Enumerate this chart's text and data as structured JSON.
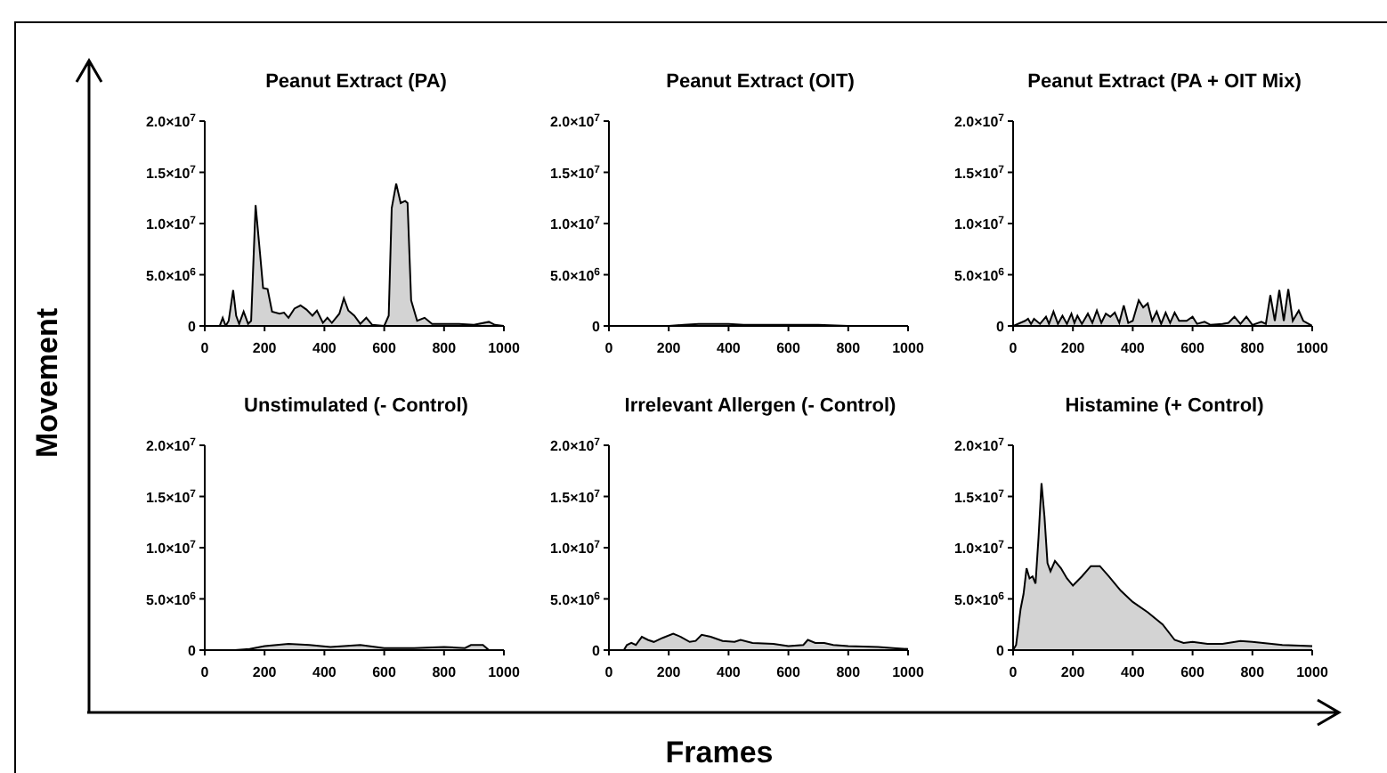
{
  "chart_data": [
    {
      "type": "area",
      "title": "Peanut Extract (PA)",
      "ylabel": "Movement",
      "color": "#d3d3d3",
      "xlim": [
        0,
        1000
      ],
      "xticks": [
        0,
        200,
        400,
        600,
        800,
        1000
      ],
      "ylim": [
        0,
        20000000
      ],
      "yticks": [
        {
          "value": 0,
          "label": "0"
        },
        {
          "value": 5000000,
          "label": "5.0×10$^{6}$"
        },
        {
          "value": 10000000,
          "label": "1.0×10$^{7}$"
        },
        {
          "value": 15000000,
          "label": "1.5×10$^{7}$"
        },
        {
          "value": 20000000,
          "label": "2.0×10$^{7}$"
        }
      ],
      "x": [
        0,
        50,
        60,
        70,
        80,
        95,
        105,
        115,
        130,
        145,
        155,
        170,
        185,
        195,
        210,
        225,
        250,
        265,
        280,
        300,
        320,
        340,
        360,
        375,
        395,
        410,
        425,
        450,
        465,
        480,
        500,
        520,
        540,
        560,
        600,
        615,
        625,
        640,
        655,
        670,
        678,
        690,
        710,
        735,
        760,
        850,
        900,
        950,
        970,
        1000
      ],
      "values": [
        0,
        0,
        800000,
        0,
        500000,
        3500000,
        1000000,
        200000,
        1400000,
        200000,
        500000,
        11800000,
        7000000,
        3700000,
        3600000,
        1400000,
        1200000,
        1300000,
        800000,
        1700000,
        2000000,
        1600000,
        1000000,
        1500000,
        300000,
        800000,
        300000,
        1200000,
        2700000,
        1500000,
        1000000,
        200000,
        800000,
        100000,
        0,
        1000000,
        11500000,
        13900000,
        12000000,
        12200000,
        12000000,
        2500000,
        500000,
        800000,
        200000,
        200000,
        100000,
        400000,
        100000,
        0
      ]
    },
    {
      "type": "area",
      "title": "Peanut Extract (OIT)",
      "color": "#d3d3d3",
      "xlim": [
        0,
        1000
      ],
      "xticks": [
        0,
        200,
        400,
        600,
        800,
        1000
      ],
      "ylim": [
        0,
        20000000
      ],
      "yticks": [
        {
          "value": 0,
          "label": "0"
        },
        {
          "value": 5000000,
          "label": "5.0×10$^{6}$"
        },
        {
          "value": 10000000,
          "label": "1.0×10$^{7}$"
        },
        {
          "value": 15000000,
          "label": "1.5×10$^{7}$"
        },
        {
          "value": 20000000,
          "label": "2.0×10$^{7}$"
        }
      ],
      "x": [
        0,
        200,
        250,
        300,
        400,
        450,
        600,
        700,
        800,
        1000
      ],
      "values": [
        0,
        0,
        100000,
        200000,
        200000,
        100000,
        100000,
        100000,
        0,
        0
      ]
    },
    {
      "type": "area",
      "title": "Peanut Extract (PA + OIT Mix)",
      "color": "#d3d3d3",
      "xlim": [
        0,
        1000
      ],
      "xticks": [
        0,
        200,
        400,
        600,
        800,
        1000
      ],
      "ylim": [
        0,
        20000000
      ],
      "yticks": [
        {
          "value": 0,
          "label": "0"
        },
        {
          "value": 5000000,
          "label": "5.0×10$^{6}$"
        },
        {
          "value": 10000000,
          "label": "1.0×10$^{7}$"
        },
        {
          "value": 15000000,
          "label": "1.5×10$^{7}$"
        },
        {
          "value": 20000000,
          "label": "2.0×10$^{7}$"
        }
      ],
      "x": [
        0,
        40,
        50,
        60,
        70,
        90,
        110,
        120,
        135,
        150,
        165,
        180,
        195,
        205,
        215,
        230,
        250,
        265,
        280,
        295,
        310,
        325,
        340,
        355,
        370,
        385,
        400,
        420,
        435,
        450,
        465,
        480,
        495,
        510,
        525,
        540,
        555,
        580,
        600,
        615,
        640,
        660,
        700,
        720,
        740,
        760,
        780,
        800,
        830,
        845,
        860,
        875,
        890,
        905,
        920,
        935,
        955,
        970,
        1000
      ],
      "values": [
        0,
        500000,
        700000,
        200000,
        700000,
        200000,
        900000,
        200000,
        1400000,
        200000,
        1000000,
        200000,
        1200000,
        300000,
        1000000,
        200000,
        1200000,
        300000,
        1500000,
        300000,
        1200000,
        900000,
        1300000,
        300000,
        2000000,
        300000,
        500000,
        2500000,
        1800000,
        2200000,
        500000,
        1400000,
        200000,
        1300000,
        300000,
        1300000,
        500000,
        500000,
        900000,
        200000,
        400000,
        100000,
        200000,
        300000,
        900000,
        200000,
        900000,
        100000,
        400000,
        200000,
        3000000,
        500000,
        3500000,
        500000,
        3600000,
        500000,
        1500000,
        500000,
        0
      ]
    },
    {
      "type": "area",
      "title": "Unstimulated (- Control)",
      "color": "#d3d3d3",
      "xlim": [
        0,
        1000
      ],
      "xticks": [
        0,
        200,
        400,
        600,
        800,
        1000
      ],
      "ylim": [
        0,
        20000000
      ],
      "yticks": [
        {
          "value": 0,
          "label": "0"
        },
        {
          "value": 5000000,
          "label": "5.0×10$^{6}$"
        },
        {
          "value": 10000000,
          "label": "1.0×10$^{7}$"
        },
        {
          "value": 15000000,
          "label": "1.5×10$^{7}$"
        },
        {
          "value": 20000000,
          "label": "2.0×10$^{7}$"
        }
      ],
      "x": [
        0,
        100,
        150,
        200,
        280,
        350,
        420,
        520,
        600,
        700,
        800,
        870,
        890,
        930,
        950,
        1000
      ],
      "values": [
        0,
        0,
        100000,
        400000,
        600000,
        500000,
        300000,
        500000,
        200000,
        200000,
        300000,
        200000,
        500000,
        500000,
        0,
        0
      ]
    },
    {
      "type": "area",
      "title": "Irrelevant Allergen (- Control)",
      "xlabel": "Frames",
      "color": "#d3d3d3",
      "xlim": [
        0,
        1000
      ],
      "xticks": [
        0,
        200,
        400,
        600,
        800,
        1000
      ],
      "ylim": [
        0,
        20000000
      ],
      "yticks": [
        {
          "value": 0,
          "label": "0"
        },
        {
          "value": 5000000,
          "label": "5.0×10$^{6}$"
        },
        {
          "value": 10000000,
          "label": "1.0×10$^{7}$"
        },
        {
          "value": 15000000,
          "label": "1.5×10$^{7}$"
        },
        {
          "value": 20000000,
          "label": "2.0×10$^{7}$"
        }
      ],
      "x": [
        0,
        50,
        60,
        75,
        90,
        110,
        130,
        150,
        180,
        215,
        240,
        270,
        290,
        310,
        340,
        380,
        420,
        440,
        480,
        550,
        600,
        650,
        665,
        690,
        720,
        750,
        800,
        900,
        950,
        1000
      ],
      "values": [
        0,
        0,
        500000,
        700000,
        500000,
        1300000,
        1000000,
        800000,
        1200000,
        1600000,
        1300000,
        800000,
        900000,
        1500000,
        1300000,
        900000,
        800000,
        1000000,
        700000,
        600000,
        400000,
        500000,
        1000000,
        700000,
        700000,
        500000,
        400000,
        300000,
        200000,
        100000
      ]
    },
    {
      "type": "area",
      "title": "Histamine (+ Control)",
      "color": "#d3d3d3",
      "xlim": [
        0,
        1000
      ],
      "xticks": [
        0,
        200,
        400,
        600,
        800,
        1000
      ],
      "ylim": [
        0,
        20000000
      ],
      "yticks": [
        {
          "value": 0,
          "label": "0"
        },
        {
          "value": 5000000,
          "label": "5.0×10$^{6}$"
        },
        {
          "value": 10000000,
          "label": "1.0×10$^{7}$"
        },
        {
          "value": 15000000,
          "label": "1.5×10$^{7}$"
        },
        {
          "value": 20000000,
          "label": "2.0×10$^{7}$"
        }
      ],
      "x": [
        0,
        10,
        25,
        35,
        45,
        55,
        65,
        75,
        85,
        95,
        105,
        115,
        125,
        140,
        160,
        180,
        200,
        230,
        260,
        290,
        320,
        360,
        400,
        450,
        500,
        540,
        570,
        600,
        650,
        700,
        760,
        800,
        900,
        1000
      ],
      "values": [
        0,
        500000,
        4000000,
        5500000,
        8000000,
        7000000,
        7200000,
        6500000,
        11000000,
        16300000,
        13000000,
        8500000,
        7700000,
        8700000,
        8000000,
        7000000,
        6300000,
        7200000,
        8200000,
        8200000,
        7200000,
        5800000,
        4700000,
        3700000,
        2500000,
        1000000,
        700000,
        800000,
        600000,
        600000,
        900000,
        800000,
        500000,
        400000
      ]
    }
  ]
}
